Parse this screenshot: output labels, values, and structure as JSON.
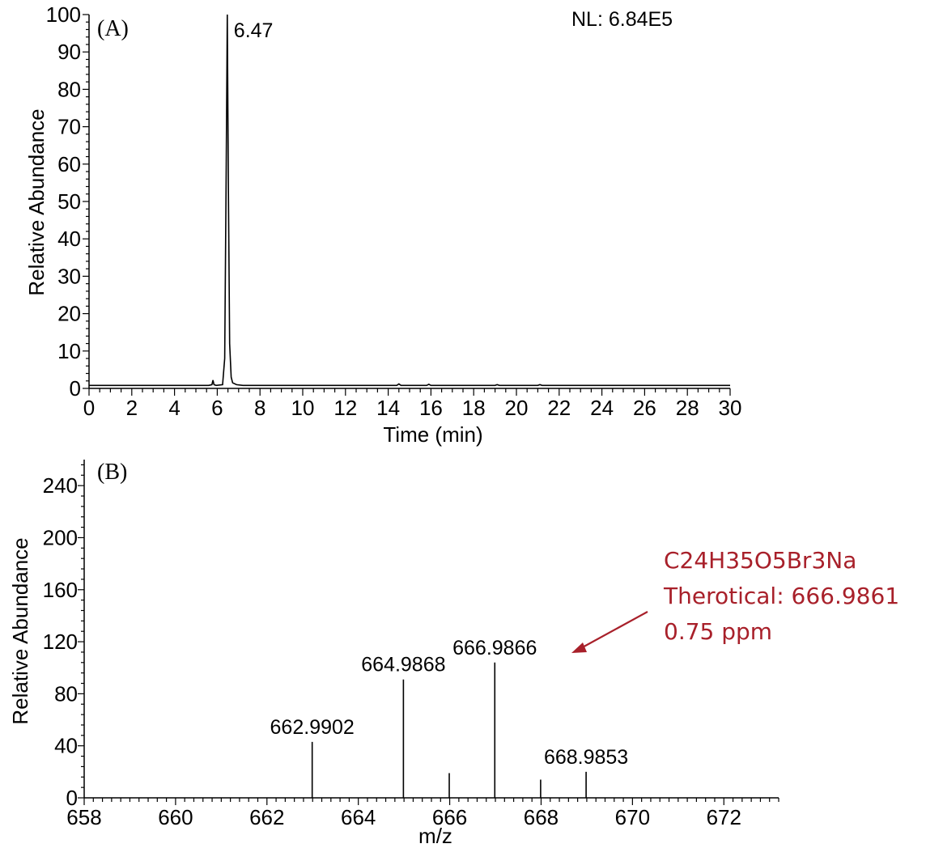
{
  "chart_data": [
    {
      "type": "line",
      "panel_label": "(A)",
      "xlabel": "Time (min)",
      "ylabel": "Relative Abundance",
      "xlim": [
        0,
        30
      ],
      "ylim": [
        0,
        100
      ],
      "xticks": [
        "0",
        "2",
        "4",
        "6",
        "8",
        "10",
        "12",
        "14",
        "16",
        "18",
        "20",
        "22",
        "24",
        "26",
        "28",
        "30"
      ],
      "yticks": [
        "0",
        "10",
        "20",
        "30",
        "40",
        "50",
        "60",
        "70",
        "80",
        "90",
        "100"
      ],
      "nl_label": "NL: 6.84E5",
      "peak_label": "6.47",
      "series": [
        {
          "x": [
            0,
            5.6,
            5.75,
            5.8,
            5.85,
            5.95,
            6.25,
            6.35,
            6.42,
            6.47,
            6.52,
            6.58,
            6.65,
            6.72,
            6.9,
            7.2,
            14.4,
            14.5,
            14.6,
            15.8,
            15.9,
            16.0,
            19.0,
            19.1,
            19.2,
            21.0,
            21.1,
            21.2,
            30
          ],
          "y": [
            0.8,
            0.8,
            1.0,
            2.2,
            1.0,
            0.8,
            1.0,
            8,
            60,
            100,
            55,
            12,
            3,
            1.5,
            1.0,
            0.8,
            0.8,
            1.2,
            0.8,
            0.8,
            1.1,
            0.8,
            0.8,
            1.0,
            0.8,
            0.8,
            1.0,
            0.8,
            0.8
          ]
        }
      ]
    },
    {
      "type": "bar",
      "panel_label": "(B)",
      "xlabel": "m/z",
      "ylabel": "Relative Abundance",
      "xlim": [
        658,
        673.2
      ],
      "ylim": [
        0,
        260
      ],
      "xticks": [
        "658",
        "660",
        "662",
        "664",
        "666",
        "668",
        "670",
        "672"
      ],
      "yticks": [
        "0",
        "40",
        "80",
        "120",
        "160",
        "200",
        "240"
      ],
      "peaks": [
        {
          "x": 662.9902,
          "y": 43,
          "label": "662.9902"
        },
        {
          "x": 664.9868,
          "y": 91,
          "label": "664.9868"
        },
        {
          "x": 665.99,
          "y": 19,
          "label": ""
        },
        {
          "x": 666.9866,
          "y": 104,
          "label": "666.9866"
        },
        {
          "x": 667.99,
          "y": 14,
          "label": ""
        },
        {
          "x": 668.9853,
          "y": 20,
          "label": "668.9853"
        }
      ],
      "annotation": {
        "lines": [
          "C24H35O5Br3Na",
          "Therotical: 666.9861",
          "0.75 ppm"
        ],
        "color": "#a8202a"
      }
    }
  ]
}
